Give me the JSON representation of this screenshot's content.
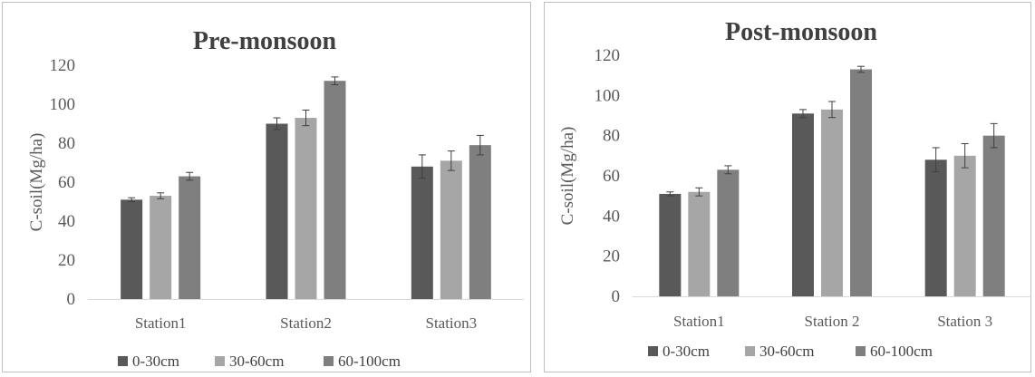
{
  "chart_data": [
    {
      "type": "bar",
      "title": "Pre-monsoon",
      "ylabel": "C-soil(Mg/ha)",
      "xlabel": "",
      "ylim": [
        0,
        120
      ],
      "yticks": [
        0,
        20,
        40,
        60,
        80,
        100,
        120
      ],
      "grid": false,
      "legend_position": "bottom",
      "categories": [
        "Station1",
        "Station2",
        "Station3"
      ],
      "series": [
        {
          "name": "0-30cm",
          "color": "#595959",
          "values": [
            51,
            90,
            68
          ],
          "errors": [
            1,
            3,
            6
          ]
        },
        {
          "name": "30-60cm",
          "color": "#a6a6a6",
          "values": [
            53,
            93,
            71
          ],
          "errors": [
            1.5,
            4,
            5
          ]
        },
        {
          "name": "60-100cm",
          "color": "#7f7f7f",
          "values": [
            63,
            112,
            79
          ],
          "errors": [
            2,
            2,
            5
          ]
        }
      ]
    },
    {
      "type": "bar",
      "title": "Post-monsoon",
      "ylabel": "C-soil(Mg/ha)",
      "xlabel": "",
      "ylim": [
        0,
        120
      ],
      "yticks": [
        0,
        20,
        40,
        60,
        80,
        100,
        120
      ],
      "grid": false,
      "legend_position": "bottom",
      "categories": [
        "Station1",
        "Station 2",
        "Station 3"
      ],
      "series": [
        {
          "name": "0-30cm",
          "color": "#595959",
          "values": [
            51,
            91,
            68
          ],
          "errors": [
            1,
            2,
            6
          ]
        },
        {
          "name": "30-60cm",
          "color": "#a6a6a6",
          "values": [
            52,
            93,
            70
          ],
          "errors": [
            2,
            4,
            6
          ]
        },
        {
          "name": "60-100cm",
          "color": "#7f7f7f",
          "values": [
            63,
            113,
            80
          ],
          "errors": [
            2,
            1.5,
            6
          ]
        }
      ]
    }
  ]
}
